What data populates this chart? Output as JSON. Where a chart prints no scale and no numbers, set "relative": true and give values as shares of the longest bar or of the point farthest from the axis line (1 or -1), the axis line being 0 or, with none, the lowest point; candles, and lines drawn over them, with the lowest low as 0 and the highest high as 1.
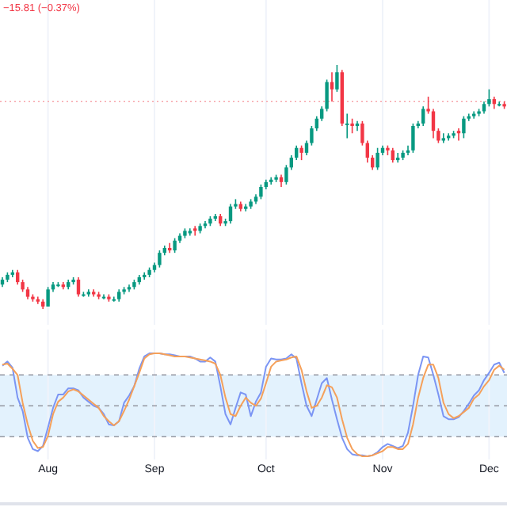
{
  "chart_data": [
    {
      "type": "candlestick",
      "relative": true,
      "grid": "x",
      "annotations": [
        "−15.81 (−0.37%)"
      ],
      "categories": [
        null,
        null,
        null,
        null,
        null,
        null,
        null,
        null,
        null,
        null,
        null,
        null,
        null,
        null,
        null,
        null,
        null,
        null,
        null,
        null,
        null,
        null,
        null,
        null,
        null,
        null,
        null,
        null,
        null,
        null,
        null,
        null,
        null,
        null,
        null,
        null,
        null,
        null,
        null,
        null,
        null,
        null,
        null,
        null,
        null,
        null,
        null,
        null,
        null,
        null,
        null,
        null,
        null,
        null,
        null,
        null,
        null,
        null,
        null,
        null,
        null,
        null,
        null,
        null,
        null,
        null,
        null,
        null,
        null,
        null,
        null,
        null,
        null,
        null,
        null,
        null,
        null,
        null,
        null,
        null,
        null,
        null,
        null,
        null,
        null,
        null,
        null,
        null,
        null,
        null,
        null,
        null,
        null,
        null,
        null,
        null,
        null,
        null,
        null,
        null
      ],
      "ohlc": [
        [
          0.1,
          0.13,
          0.09,
          0.12
        ],
        [
          0.12,
          0.15,
          0.11,
          0.14
        ],
        [
          0.14,
          0.16,
          0.13,
          0.15
        ],
        [
          0.15,
          0.16,
          0.1,
          0.11
        ],
        [
          0.11,
          0.12,
          0.07,
          0.08
        ],
        [
          0.08,
          0.09,
          0.04,
          0.05
        ],
        [
          0.05,
          0.06,
          0.03,
          0.04
        ],
        [
          0.04,
          0.05,
          0.02,
          0.03
        ],
        [
          0.03,
          0.04,
          0,
          0.01
        ],
        [
          0.01,
          0.09,
          0.01,
          0.08
        ],
        [
          0.08,
          0.11,
          0.07,
          0.1
        ],
        [
          0.1,
          0.11,
          0.09,
          0.1
        ],
        [
          0.1,
          0.11,
          0.08,
          0.09
        ],
        [
          0.09,
          0.12,
          0.08,
          0.11
        ],
        [
          0.11,
          0.13,
          0.1,
          0.12
        ],
        [
          0.12,
          0.13,
          0.05,
          0.06
        ],
        [
          0.06,
          0.07,
          0.05,
          0.06
        ],
        [
          0.06,
          0.08,
          0.05,
          0.07
        ],
        [
          0.07,
          0.08,
          0.05,
          0.06
        ],
        [
          0.06,
          0.07,
          0.04,
          0.05
        ],
        [
          0.05,
          0.06,
          0.04,
          0.05
        ],
        [
          0.05,
          0.06,
          0.03,
          0.04
        ],
        [
          0.04,
          0.05,
          0.03,
          0.04
        ],
        [
          0.04,
          0.08,
          0.03,
          0.07
        ],
        [
          0.07,
          0.09,
          0.06,
          0.08
        ],
        [
          0.08,
          0.1,
          0.07,
          0.09
        ],
        [
          0.09,
          0.12,
          0.08,
          0.11
        ],
        [
          0.11,
          0.14,
          0.1,
          0.13
        ],
        [
          0.13,
          0.15,
          0.12,
          0.14
        ],
        [
          0.14,
          0.17,
          0.13,
          0.16
        ],
        [
          0.16,
          0.19,
          0.15,
          0.18
        ],
        [
          0.18,
          0.24,
          0.17,
          0.23
        ],
        [
          0.23,
          0.26,
          0.22,
          0.25
        ],
        [
          0.25,
          0.27,
          0.23,
          0.24
        ],
        [
          0.24,
          0.29,
          0.23,
          0.28
        ],
        [
          0.28,
          0.31,
          0.27,
          0.3
        ],
        [
          0.3,
          0.33,
          0.29,
          0.32
        ],
        [
          0.31,
          0.33,
          0.3,
          0.32
        ],
        [
          0.33,
          0.34,
          0.3,
          0.32
        ],
        [
          0.32,
          0.35,
          0.31,
          0.34
        ],
        [
          0.34,
          0.36,
          0.33,
          0.35
        ],
        [
          0.35,
          0.38,
          0.34,
          0.37
        ],
        [
          0.37,
          0.39,
          0.36,
          0.38
        ],
        [
          0.38,
          0.39,
          0.34,
          0.35
        ],
        [
          0.35,
          0.37,
          0.34,
          0.36
        ],
        [
          0.36,
          0.43,
          0.35,
          0.42
        ],
        [
          0.42,
          0.45,
          0.41,
          0.43
        ],
        [
          0.43,
          0.44,
          0.4,
          0.41
        ],
        [
          0.41,
          0.43,
          0.4,
          0.42
        ],
        [
          0.42,
          0.45,
          0.41,
          0.44
        ],
        [
          0.44,
          0.47,
          0.43,
          0.46
        ],
        [
          0.46,
          0.51,
          0.45,
          0.5
        ],
        [
          0.5,
          0.53,
          0.49,
          0.52
        ],
        [
          0.52,
          0.54,
          0.51,
          0.53
        ],
        [
          0.53,
          0.55,
          0.52,
          0.54
        ],
        [
          0.54,
          0.55,
          0.5,
          0.52
        ],
        [
          0.52,
          0.59,
          0.51,
          0.58
        ],
        [
          0.58,
          0.63,
          0.57,
          0.62
        ],
        [
          0.62,
          0.67,
          0.61,
          0.66
        ],
        [
          0.66,
          0.67,
          0.61,
          0.64
        ],
        [
          0.64,
          0.69,
          0.63,
          0.68
        ],
        [
          0.68,
          0.75,
          0.67,
          0.74
        ],
        [
          0.74,
          0.79,
          0.73,
          0.78
        ],
        [
          0.78,
          0.83,
          0.77,
          0.82
        ],
        [
          0.82,
          0.94,
          0.81,
          0.93
        ],
        [
          0.93,
          0.97,
          0.85,
          0.9
        ],
        [
          0.9,
          1,
          0.89,
          0.97
        ],
        [
          0.97,
          0.98,
          0.75,
          0.76
        ],
        [
          0.76,
          0.8,
          0.7,
          0.76
        ],
        [
          0.76,
          0.78,
          0.72,
          0.75
        ],
        [
          0.75,
          0.77,
          0.73,
          0.76
        ],
        [
          0.76,
          0.77,
          0.67,
          0.68
        ],
        [
          0.68,
          0.69,
          0.6,
          0.62
        ],
        [
          0.62,
          0.63,
          0.57,
          0.58
        ],
        [
          0.58,
          0.66,
          0.57,
          0.64
        ],
        [
          0.64,
          0.67,
          0.63,
          0.66
        ],
        [
          0.66,
          0.67,
          0.63,
          0.65
        ],
        [
          0.65,
          0.66,
          0.6,
          0.61
        ],
        [
          0.61,
          0.64,
          0.6,
          0.62
        ],
        [
          0.62,
          0.65,
          0.61,
          0.64
        ],
        [
          0.64,
          0.67,
          0.63,
          0.65
        ],
        [
          0.65,
          0.76,
          0.64,
          0.75
        ],
        [
          0.75,
          0.77,
          0.74,
          0.76
        ],
        [
          0.76,
          0.83,
          0.75,
          0.82
        ],
        [
          0.82,
          0.87,
          0.8,
          0.81
        ],
        [
          0.81,
          0.82,
          0.7,
          0.73
        ],
        [
          0.73,
          0.74,
          0.68,
          0.69
        ],
        [
          0.69,
          0.72,
          0.68,
          0.7
        ],
        [
          0.7,
          0.72,
          0.69,
          0.71
        ],
        [
          0.71,
          0.73,
          0.7,
          0.72
        ],
        [
          0.73,
          0.74,
          0.69,
          0.72
        ],
        [
          0.72,
          0.79,
          0.7,
          0.78
        ],
        [
          0.78,
          0.8,
          0.77,
          0.79
        ],
        [
          0.79,
          0.81,
          0.78,
          0.8
        ],
        [
          0.8,
          0.82,
          0.79,
          0.81
        ],
        [
          0.81,
          0.85,
          0.8,
          0.84
        ],
        [
          0.84,
          0.9,
          0.83,
          0.86
        ],
        [
          0.86,
          0.87,
          0.82,
          0.84
        ],
        [
          0.84,
          0.85,
          0.83,
          0.84
        ],
        [
          0.84,
          0.85,
          0.82,
          0.83
        ]
      ],
      "colors": [
        "#089981",
        "#089981",
        "#089981",
        "#f23645",
        "#f23645",
        "#f23645",
        "#f23645",
        "#f23645",
        "#f23645",
        "#089981",
        "#089981",
        "#089981",
        "#f23645",
        "#089981",
        "#089981",
        "#f23645",
        "#089981",
        "#089981",
        "#f23645",
        "#f23645",
        "#089981",
        "#f23645",
        "#089981",
        "#089981",
        "#089981",
        "#089981",
        "#089981",
        "#089981",
        "#089981",
        "#089981",
        "#089981",
        "#089981",
        "#089981",
        "#f23645",
        "#089981",
        "#089981",
        "#089981",
        "#089981",
        "#f23645",
        "#089981",
        "#089981",
        "#089981",
        "#089981",
        "#f23645",
        "#089981",
        "#089981",
        "#089981",
        "#f23645",
        "#089981",
        "#089981",
        "#089981",
        "#089981",
        "#089981",
        "#089981",
        "#089981",
        "#f23645",
        "#089981",
        "#089981",
        "#089981",
        "#f23645",
        "#089981",
        "#089981",
        "#089981",
        "#089981",
        "#089981",
        "#f23645",
        "#089981",
        "#f23645",
        "#089981",
        "#f23645",
        "#089981",
        "#f23645",
        "#f23645",
        "#f23645",
        "#089981",
        "#089981",
        "#f23645",
        "#f23645",
        "#089981",
        "#089981",
        "#089981",
        "#089981",
        "#089981",
        "#089981",
        "#f23645",
        "#f23645",
        "#f23645",
        "#089981",
        "#089981",
        "#089981",
        "#f23645",
        "#089981",
        "#089981",
        "#089981",
        "#089981",
        "#089981",
        "#089981",
        "#f23645",
        "#089981",
        "#f23645"
      ],
      "ref_lines": [
        {
          "axis": "y",
          "value": 0.85,
          "color": "#f8a5ab",
          "line_style": "dotted"
        }
      ]
    },
    {
      "type": "line",
      "relative": true,
      "grid": "x",
      "categories": [
        null,
        null,
        null,
        null,
        null,
        null,
        null,
        null,
        null,
        "Aug",
        null,
        null,
        null,
        null,
        null,
        null,
        null,
        null,
        null,
        null,
        null,
        null,
        null,
        null,
        null,
        null,
        null,
        null,
        null,
        null,
        "Sep",
        null,
        null,
        null,
        null,
        null,
        null,
        null,
        null,
        null,
        null,
        null,
        null,
        null,
        null,
        null,
        null,
        null,
        null,
        null,
        null,
        null,
        "Oct",
        null,
        null,
        null,
        null,
        null,
        null,
        null,
        null,
        null,
        null,
        null,
        null,
        null,
        null,
        null,
        null,
        null,
        null,
        null,
        null,
        null,
        null,
        "Nov",
        null,
        null,
        null,
        null,
        null,
        null,
        null,
        null,
        null,
        null,
        null,
        null,
        null,
        null,
        null,
        null,
        null,
        null,
        null,
        null,
        "Dec",
        null,
        null,
        null
      ],
      "bands": [
        {
          "axis": "y",
          "from": 0.19,
          "to": 0.79,
          "color": "#e3f2fd"
        }
      ],
      "ref_lines": [
        {
          "axis": "y",
          "value": 0.79,
          "color": "#9598a1",
          "line_style": "dashed"
        },
        {
          "axis": "y",
          "value": 0.49,
          "color": "#9598a1",
          "line_style": "dashed"
        },
        {
          "axis": "y",
          "value": 0.19,
          "color": "#9598a1",
          "line_style": "dashed"
        }
      ],
      "series": [
        {
          "color": "#7b95f4",
          "values": [
            0.88,
            0.92,
            0.86,
            0.57,
            0.44,
            0.18,
            0.07,
            0.05,
            0.1,
            0.28,
            0.47,
            0.6,
            0.6,
            0.66,
            0.66,
            0.64,
            0.57,
            0.53,
            0.49,
            0.47,
            0.41,
            0.31,
            0.3,
            0.34,
            0.52,
            0.59,
            0.68,
            0.85,
            0.97,
            1.0,
            1.0,
            1.0,
            0.99,
            0.99,
            0.98,
            0.97,
            0.97,
            0.97,
            0.95,
            0.92,
            0.92,
            0.96,
            0.92,
            0.68,
            0.41,
            0.31,
            0.47,
            0.62,
            0.6,
            0.39,
            0.53,
            0.62,
            0.87,
            0.95,
            0.94,
            0.94,
            0.95,
            0.99,
            0.95,
            0.71,
            0.49,
            0.39,
            0.55,
            0.71,
            0.76,
            0.55,
            0.36,
            0.18,
            0.07,
            0.02,
            0.01,
            0.01,
            0,
            0.01,
            0.04,
            0.09,
            0.12,
            0.1,
            0.08,
            0.1,
            0.23,
            0.49,
            0.79,
            0.97,
            0.96,
            0.79,
            0.6,
            0.39,
            0.36,
            0.36,
            0.38,
            0.44,
            0.51,
            0.59,
            0.64,
            0.74,
            0.81,
            0.89,
            0.91,
            0.81
          ]
        },
        {
          "color": "#f5a05a",
          "values": [
            0.89,
            0.9,
            0.85,
            0.79,
            0.52,
            0.31,
            0.15,
            0.08,
            0.09,
            0.2,
            0.41,
            0.53,
            0.57,
            0.63,
            0.65,
            0.63,
            0.59,
            0.55,
            0.51,
            0.47,
            0.39,
            0.34,
            0.3,
            0.34,
            0.44,
            0.55,
            0.68,
            0.81,
            0.95,
            0.99,
            1.0,
            1.0,
            0.99,
            0.98,
            0.97,
            0.97,
            0.97,
            0.96,
            0.95,
            0.94,
            0.93,
            0.92,
            0.9,
            0.79,
            0.57,
            0.41,
            0.39,
            0.49,
            0.57,
            0.52,
            0.49,
            0.56,
            0.71,
            0.87,
            0.92,
            0.93,
            0.94,
            0.96,
            0.97,
            0.84,
            0.63,
            0.47,
            0.49,
            0.57,
            0.69,
            0.67,
            0.57,
            0.36,
            0.18,
            0.07,
            0.02,
            0,
            0,
            0.01,
            0.03,
            0.05,
            0.09,
            0.09,
            0.07,
            0.07,
            0.12,
            0.31,
            0.57,
            0.76,
            0.89,
            0.89,
            0.76,
            0.52,
            0.41,
            0.37,
            0.39,
            0.43,
            0.47,
            0.56,
            0.6,
            0.68,
            0.74,
            0.84,
            0.88,
            0.84
          ]
        }
      ]
    }
  ]
}
